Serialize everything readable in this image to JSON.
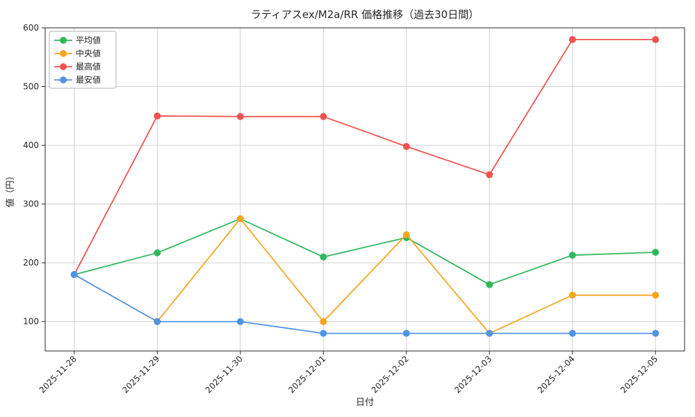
{
  "chart_data": {
    "type": "line",
    "title": "ラティアスex/M2a/RR 価格推移（過去30日間）",
    "xlabel": "日付",
    "ylabel": "値（円）",
    "categories": [
      "2025-11-28",
      "2025-11-29",
      "2025-11-30",
      "2025-12-01",
      "2025-12-02",
      "2025-12-03",
      "2025-12-04",
      "2025-12-05"
    ],
    "yticks": [
      100,
      200,
      300,
      400,
      500,
      600
    ],
    "ylim": [
      50,
      600
    ],
    "grid": true,
    "legend_position": "upper-left",
    "series": [
      {
        "id": "average",
        "name": "平均値",
        "color": "#2eb85c",
        "values": [
          180,
          217,
          275,
          210,
          243,
          163,
          213,
          218
        ]
      },
      {
        "id": "median",
        "name": "中央値",
        "color": "#f5a623",
        "values": [
          180,
          100,
          275,
          100,
          248,
          80,
          145,
          145
        ]
      },
      {
        "id": "max",
        "name": "最高値",
        "color": "#ef5350",
        "values": [
          180,
          450,
          449,
          449,
          398,
          350,
          580,
          580
        ]
      },
      {
        "id": "min",
        "name": "最安値",
        "color": "#5094e4",
        "values": [
          180,
          100,
          100,
          80,
          80,
          80,
          80,
          80
        ]
      }
    ],
    "colors": {
      "grid": "#cccccc",
      "spine": "#262626",
      "text": "#262626",
      "legend_border": "#b0b0b0",
      "background": "#ffffff"
    }
  }
}
